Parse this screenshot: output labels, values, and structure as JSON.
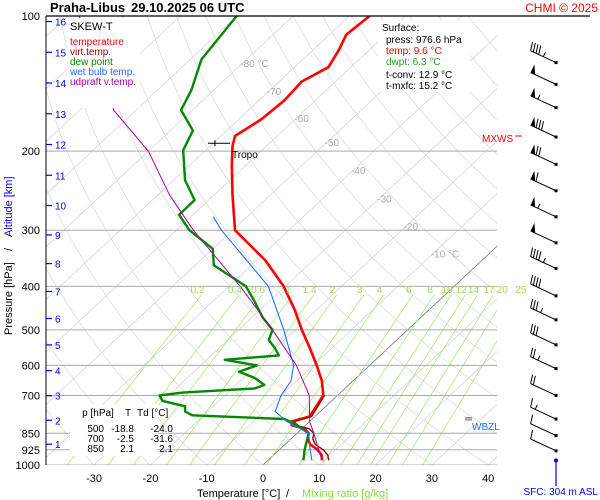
{
  "chart_data": {
    "type": "line",
    "subtype": "skew-T log-p",
    "title": "Praha-Libus",
    "datetime": "29.10.2025 06 UTC",
    "copyright": "CHMI © 2025",
    "legend_title": "SKEW-T",
    "xlabel": "Temperature [°C]",
    "xlabel_sep": "/",
    "xlabel2": "Mixing ratio [g/kg]",
    "ylabel": "Pressure [hPa]",
    "ylabel_sep": "/",
    "ylabel2": "Altitude [km]",
    "xlim": [
      -35,
      45
    ],
    "ylim_hpa": [
      1000,
      100
    ],
    "x_ticks": [
      -30,
      -20,
      -10,
      0,
      10,
      20,
      30,
      40
    ],
    "p_ticks": [
      100,
      200,
      300,
      400,
      500,
      600,
      700,
      850,
      925,
      1000
    ],
    "altitude_ticks_km": [
      1,
      2,
      3,
      4,
      5,
      6,
      7,
      8,
      9,
      10,
      11,
      12,
      13,
      14,
      15,
      16
    ],
    "isotherm_labels": [
      "-80 °C",
      "-70",
      "-60",
      "-50",
      "-40",
      "-30",
      "-20",
      "-10 °C"
    ],
    "isotherm_label_values": [
      -80,
      -70,
      -60,
      -50,
      -40,
      -30,
      -20,
      -10
    ],
    "mixing_ratio_labels": [
      "0.2",
      "0.4",
      "0.6",
      "1",
      "1.4",
      "2",
      "3",
      "4",
      "6",
      "8",
      "10",
      "12",
      "14",
      "17",
      "20",
      "25"
    ],
    "mixing_ratio_values": [
      0.2,
      0.4,
      0.6,
      1,
      1.4,
      2,
      3,
      4,
      6,
      8,
      10,
      12,
      14,
      17,
      20,
      25
    ],
    "colors": {
      "temperature": "#ff0000",
      "virt_temp": "#990000",
      "dew_point": "#008800",
      "wet_bulb": "#1e6fff",
      "updraft": "#aa00aa",
      "mixing": "#99e65c",
      "grid": "#c8c8c8",
      "altitude": "#0000ee"
    },
    "series": [
      {
        "name": "temperature",
        "label": "temperature",
        "color": "#ff0000",
        "width": 2.6,
        "points": [
          [
            976.6,
            9.6
          ],
          [
            950,
            8.5
          ],
          [
            925,
            6.8
          ],
          [
            900,
            4.5
          ],
          [
            875,
            3
          ],
          [
            850,
            2.1
          ],
          [
            830,
            0.5
          ],
          [
            815,
            -2.5
          ],
          [
            800,
            -3.2
          ],
          [
            780,
            -1
          ],
          [
            750,
            -1.5
          ],
          [
            700,
            -2.5
          ],
          [
            650,
            -5.5
          ],
          [
            600,
            -9.4
          ],
          [
            550,
            -13.8
          ],
          [
            500,
            -18.8
          ],
          [
            450,
            -24
          ],
          [
            400,
            -30.3
          ],
          [
            350,
            -38.5
          ],
          [
            300,
            -49.6
          ],
          [
            250,
            -56.8
          ],
          [
            215,
            -62.5
          ],
          [
            195,
            -66
          ],
          [
            185,
            -67.5
          ],
          [
            170,
            -66
          ],
          [
            154,
            -65.5
          ],
          [
            140,
            -66
          ],
          [
            130,
            -64
          ],
          [
            119,
            -65.4
          ],
          [
            110,
            -67
          ],
          [
            100,
            -66.4
          ]
        ]
      },
      {
        "name": "virt_temp",
        "label": "virt.temp.",
        "color": "#990000",
        "width": 1.4,
        "points": [
          [
            976.6,
            10.8
          ],
          [
            950,
            9.6
          ],
          [
            925,
            7.8
          ],
          [
            900,
            5.4
          ],
          [
            875,
            3.9
          ],
          [
            850,
            3
          ],
          [
            830,
            1.3
          ],
          [
            815,
            -2
          ],
          [
            800,
            -2.6
          ],
          [
            780,
            -0.6
          ],
          [
            750,
            -1.2
          ],
          [
            700,
            -2.3
          ]
        ]
      },
      {
        "name": "dew_point",
        "label": "dew point",
        "color": "#008800",
        "width": 2.4,
        "points": [
          [
            976.6,
            6.3
          ],
          [
            925,
            4.5
          ],
          [
            850,
            2.1
          ],
          [
            830,
            0
          ],
          [
            810,
            -2
          ],
          [
            790,
            -5
          ],
          [
            775,
            -22
          ],
          [
            760,
            -24
          ],
          [
            740,
            -25
          ],
          [
            720,
            -30
          ],
          [
            700,
            -31.6
          ],
          [
            690,
            -28
          ],
          [
            675,
            -16
          ],
          [
            663,
            -15
          ],
          [
            640,
            -18
          ],
          [
            620,
            -22
          ],
          [
            600,
            -20
          ],
          [
            583,
            -26.8
          ],
          [
            570,
            -18
          ],
          [
            550,
            -20
          ],
          [
            527,
            -22.7
          ],
          [
            500,
            -24
          ],
          [
            470,
            -28
          ],
          [
            429,
            -33
          ],
          [
            400,
            -37
          ],
          [
            359,
            -46.7
          ],
          [
            330,
            -50
          ],
          [
            300,
            -57.7
          ],
          [
            277,
            -62.5
          ],
          [
            257,
            -62.5
          ],
          [
            232,
            -68
          ],
          [
            199,
            -74
          ],
          [
            180,
            -76
          ],
          [
            162,
            -82
          ],
          [
            146,
            -84
          ],
          [
            125,
            -88
          ],
          [
            100,
            -90
          ]
        ]
      },
      {
        "name": "wet_bulb",
        "label": "wet bulb temp.",
        "color": "#1e6fff",
        "width": 1.1,
        "points": [
          [
            976.6,
            7.8
          ],
          [
            925,
            5.5
          ],
          [
            850,
            2.1
          ],
          [
            800,
            -4
          ],
          [
            760,
            -8
          ],
          [
            700,
            -10
          ],
          [
            650,
            -11
          ],
          [
            600,
            -13.5
          ],
          [
            500,
            -22
          ],
          [
            400,
            -33
          ],
          [
            300,
            -52
          ],
          [
            280,
            -56
          ]
        ]
      },
      {
        "name": "updraft_v_temp",
        "label": "udpraft v.temp.",
        "color": "#aa00aa",
        "width": 1.0,
        "points": [
          [
            976.6,
            9.6
          ],
          [
            925,
            7
          ],
          [
            850,
            3
          ],
          [
            800,
            0
          ],
          [
            700,
            -5
          ],
          [
            600,
            -13
          ],
          [
            500,
            -24
          ],
          [
            400,
            -38
          ],
          [
            300,
            -57
          ],
          [
            250,
            -68
          ],
          [
            200,
            -80
          ],
          [
            162,
            -94
          ],
          [
            130,
            -104
          ],
          [
            100,
            -118
          ]
        ]
      }
    ],
    "surface": {
      "title": "Surface:",
      "press": "press: 976.6 hPa",
      "temp": "temp: 9.6 °C",
      "dwpt": "dwpt: 6.3 °C",
      "tconv": "t-conv: 12.9 °C",
      "tmxfc": "t-mxfc: 15.2 °C"
    },
    "table": {
      "headers": [
        "p [hPa]",
        "T",
        "Td [°C]"
      ],
      "rows": [
        [
          "500",
          "-18.8",
          "-24.0"
        ],
        [
          "700",
          "-2.5",
          "-31.6"
        ],
        [
          "850",
          "2.1",
          "2.1"
        ]
      ]
    },
    "annotations": {
      "tropo": "Tropo",
      "tropo_p": 192,
      "mxws": "MXWS",
      "mxws_p": 186,
      "wbzl": "WBZL",
      "wbzl_p": 810,
      "sfc": "SFC: 304 m ASL"
    },
    "winds": [
      [
        127,
        45
      ],
      [
        142,
        50
      ],
      [
        160,
        55
      ],
      [
        186,
        80
      ],
      [
        214,
        70
      ],
      [
        245,
        60
      ],
      [
        280,
        55
      ],
      [
        320,
        50
      ],
      [
        365,
        45
      ],
      [
        420,
        40
      ],
      [
        475,
        35
      ],
      [
        540,
        30
      ],
      [
        610,
        25
      ],
      [
        700,
        20
      ],
      [
        790,
        15
      ],
      [
        860,
        10
      ],
      [
        930,
        10
      ]
    ],
    "wind_direction_deg": 295
  }
}
